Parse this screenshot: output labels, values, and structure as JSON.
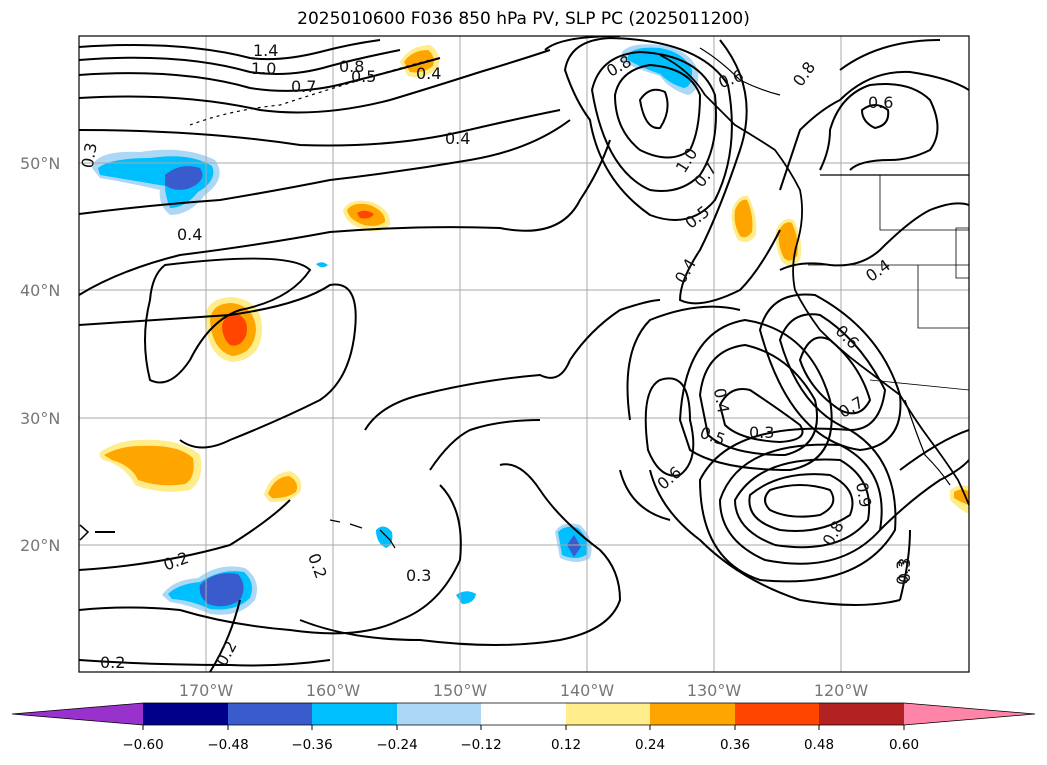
{
  "title": "2025010600 F036 850 hPa PV, SLP PC (2025011200)",
  "map": {
    "latitude_labels": [
      "50°N",
      "40°N",
      "30°N",
      "20°N"
    ],
    "longitude_labels": [
      "170°W",
      "160°W",
      "150°W",
      "140°W",
      "130°W",
      "120°W"
    ],
    "contour_labels": [
      "1.4",
      "1.0",
      "0.7",
      "0.8",
      "0.5",
      "0.4",
      "0.3",
      "0.4",
      "0.4",
      "0.3",
      "0.2",
      "0.2",
      "0.3",
      "0.2",
      "0.2",
      "0.8",
      "1.0",
      "0.7",
      "0.5",
      "0.4",
      "0.6",
      "0.8",
      "0.6",
      "0.4",
      "0.6",
      "0.7",
      "0.4",
      "0.5",
      "0.3",
      "0.6",
      "0.9",
      "0.8",
      "0.3"
    ],
    "grid": true,
    "coastlines": true
  },
  "colorbar": {
    "tick_labels": [
      "−0.60",
      "−0.48",
      "−0.36",
      "−0.24",
      "−0.12",
      "0.12",
      "0.24",
      "0.36",
      "0.48",
      "0.60"
    ],
    "colors": [
      "#9932cc",
      "#00008b",
      "#3a5bcc",
      "#00bfff",
      "#add8f5",
      "#ffffff",
      "#ffec8b",
      "#ffa500",
      "#ff4500",
      "#b22222",
      "#ff85a8"
    ],
    "extend": "both"
  }
}
